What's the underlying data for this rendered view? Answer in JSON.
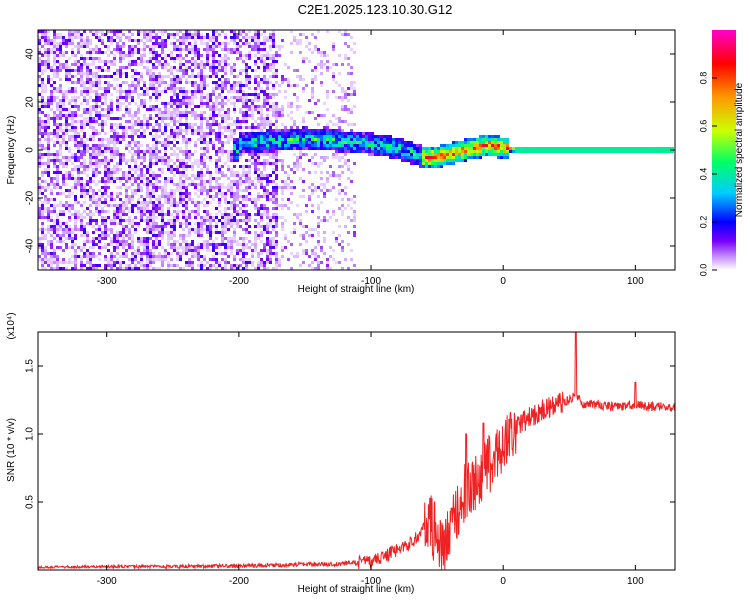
{
  "chart_data": [
    {
      "type": "heatmap",
      "title": "C2E1.2025.123.10.30.G12",
      "xlabel": "Height of straight line (km)",
      "ylabel": "Frequency (Hz)",
      "xlim": [
        -352,
        130
      ],
      "ylim": [
        -50,
        50
      ],
      "xticks": [
        -300,
        -200,
        -100,
        0,
        100
      ],
      "yticks": [
        -40,
        -20,
        0,
        20,
        40
      ],
      "grid": false,
      "colorbar": {
        "label": "Normalized spectral amplitude",
        "range": [
          0,
          1
        ],
        "ticks": [
          "0.0",
          "0.2",
          "0.4",
          "0.6",
          "0.8"
        ],
        "colors": [
          "#ffffff",
          "#cc99ff",
          "#7a00ff",
          "#0000ff",
          "#00ccff",
          "#00ff66",
          "#ccff00",
          "#ff9900",
          "#ff0000",
          "#ff00cc"
        ]
      },
      "signal_track": {
        "x": [
          -200,
          -165,
          -150,
          -130,
          -110,
          -90,
          -75,
          -60,
          -50,
          -35,
          -20,
          -10,
          0,
          10,
          130
        ],
        "y": [
          3,
          4,
          5,
          4,
          3,
          2,
          0,
          -3,
          -3,
          -1,
          1,
          2,
          1,
          0,
          0
        ]
      },
      "noise_region_x": [
        -352,
        -110
      ],
      "dense_noise_x": [
        -352,
        -170
      ]
    },
    {
      "type": "line",
      "title": "",
      "xlabel": "Height of straight line (km)",
      "ylabel": "SNR (10 * v/v)",
      "y_multiplier": "(x10⁴)",
      "xlim": [
        -352,
        130
      ],
      "ylim": [
        0,
        1.75
      ],
      "xticks": [
        -300,
        -200,
        -100,
        0,
        100
      ],
      "yticks": [
        0.5,
        1.0,
        1.5
      ],
      "line_color": "#ee2222",
      "grid": false,
      "x": [
        -352,
        -300,
        -250,
        -200,
        -175,
        -150,
        -125,
        -100,
        -90,
        -80,
        -70,
        -65,
        -60,
        -55,
        -50,
        -45,
        -40,
        -35,
        -30,
        -25,
        -20,
        -15,
        -10,
        -5,
        0,
        5,
        10,
        20,
        30,
        40,
        50,
        55,
        60,
        70,
        80,
        90,
        100,
        110,
        120,
        130
      ],
      "y": [
        0.02,
        0.025,
        0.025,
        0.03,
        0.035,
        0.04,
        0.045,
        0.06,
        0.1,
        0.15,
        0.2,
        0.25,
        0.3,
        0.35,
        0.2,
        0.12,
        0.3,
        0.45,
        0.55,
        0.6,
        0.65,
        0.72,
        0.78,
        0.85,
        0.92,
        1.0,
        1.06,
        1.12,
        1.18,
        1.22,
        1.25,
        1.3,
        1.22,
        1.22,
        1.2,
        1.2,
        1.22,
        1.2,
        1.2,
        1.2
      ],
      "spikes": [
        {
          "x": 55,
          "y": 1.75
        },
        {
          "x": 100,
          "y": 1.38
        },
        {
          "x": -28,
          "y": 1.0
        },
        {
          "x": -15,
          "y": 1.08
        },
        {
          "x": -52,
          "y": 0.5
        }
      ]
    }
  ]
}
